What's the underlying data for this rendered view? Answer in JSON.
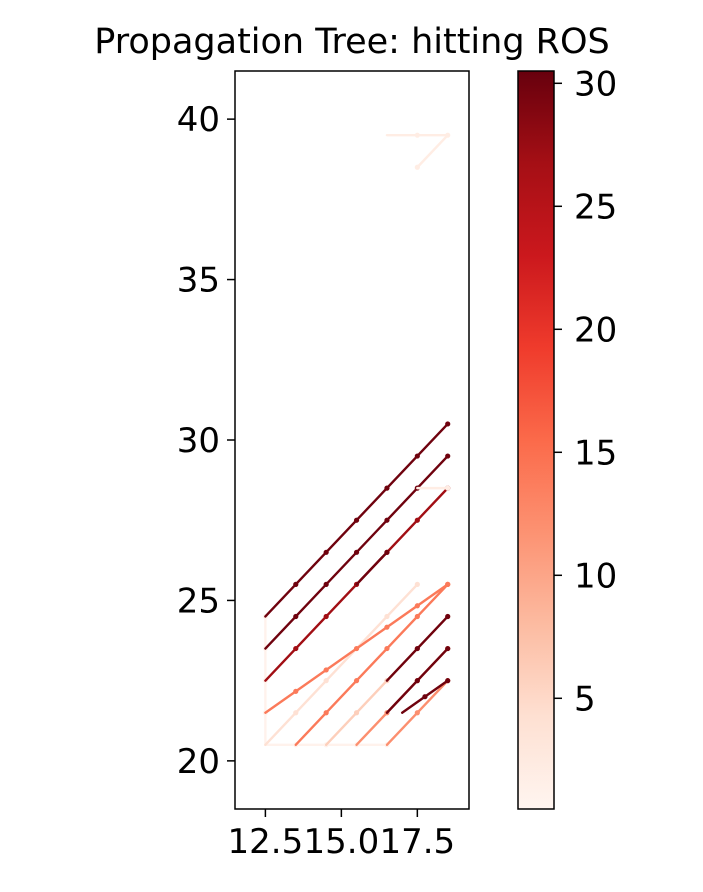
{
  "chart_data": {
    "type": "line",
    "title": "Propagation Tree: hitting ROS",
    "xlabel": "",
    "ylabel": "",
    "xlim": [
      11.5,
      19.2
    ],
    "ylim": [
      18.5,
      41.5
    ],
    "xticks": [
      "12.5",
      "15.0",
      "17.5"
    ],
    "xtick_values": [
      12.5,
      15.0,
      17.5
    ],
    "yticks": [
      "20",
      "25",
      "30",
      "35",
      "40"
    ],
    "ytick_values": [
      20,
      25,
      30,
      35,
      40
    ],
    "grid": false,
    "colorbar": {
      "colormap": "Reds",
      "range": [
        0.5,
        30.5
      ],
      "ticks": [
        "5",
        "10",
        "15",
        "20",
        "25",
        "30"
      ],
      "tick_values": [
        5,
        10,
        15,
        20,
        25,
        30
      ]
    },
    "segments": [
      {
        "x1": 12.5,
        "y1": 20.5,
        "x2": 16.5,
        "y2": 20.5,
        "value": 1
      },
      {
        "x1": 12.5,
        "y1": 20.5,
        "x2": 12.5,
        "y2": 24.5,
        "value": 1
      },
      {
        "x1": 12.5,
        "y1": 20.5,
        "x2": 17.5,
        "y2": 25.5,
        "value": 4
      },
      {
        "x1": 12.5,
        "y1": 21.5,
        "x2": 18.5,
        "y2": 25.5,
        "value": 14
      },
      {
        "x1": 12.5,
        "y1": 22.5,
        "x2": 18.5,
        "y2": 28.5,
        "value": 27
      },
      {
        "x1": 12.5,
        "y1": 23.5,
        "x2": 18.5,
        "y2": 29.5,
        "value": 30
      },
      {
        "x1": 12.5,
        "y1": 24.5,
        "x2": 18.5,
        "y2": 30.5,
        "value": 30
      },
      {
        "x1": 13.5,
        "y1": 20.5,
        "x2": 18.5,
        "y2": 25.5,
        "value": 14
      },
      {
        "x1": 14.5,
        "y1": 20.5,
        "x2": 18.5,
        "y2": 24.5,
        "value": 6
      },
      {
        "x1": 15.5,
        "y1": 20.5,
        "x2": 18.5,
        "y2": 23.5,
        "value": 12
      },
      {
        "x1": 16.5,
        "y1": 20.5,
        "x2": 18.5,
        "y2": 22.5,
        "value": 12
      },
      {
        "x1": 15.5,
        "y1": 25.5,
        "x2": 16.5,
        "y2": 26.5,
        "value": 30
      },
      {
        "x1": 17.0,
        "y1": 21.5,
        "x2": 18.5,
        "y2": 22.5,
        "value": 30
      },
      {
        "x1": 16.5,
        "y1": 21.5,
        "x2": 18.5,
        "y2": 23.5,
        "value": 30
      },
      {
        "x1": 16.5,
        "y1": 22.5,
        "x2": 18.5,
        "y2": 24.5,
        "value": 30
      },
      {
        "x1": 17.5,
        "y1": 28.5,
        "x2": 18.5,
        "y2": 28.5,
        "value": 2
      },
      {
        "x1": 16.5,
        "y1": 39.5,
        "x2": 18.5,
        "y2": 39.5,
        "value": 2
      },
      {
        "x1": 18.5,
        "y1": 39.5,
        "x2": 17.5,
        "y2": 38.5,
        "value": 2
      }
    ]
  }
}
